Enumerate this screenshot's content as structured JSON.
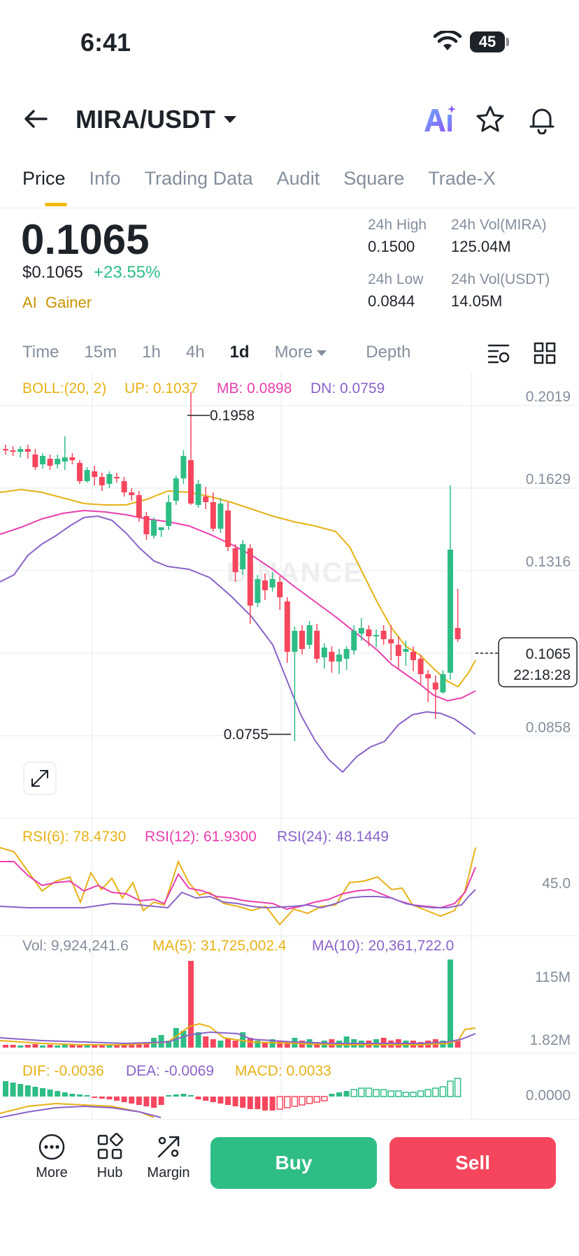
{
  "status_bar": {
    "time": "6:41",
    "battery": "45"
  },
  "header": {
    "pair": "MIRA/USDT"
  },
  "tabs": [
    "Price",
    "Info",
    "Trading Data",
    "Audit",
    "Square",
    "Trade-X"
  ],
  "price": {
    "last": "0.1065",
    "usd": "$0.1065",
    "change": "+23.55%",
    "tag_ai": "AI",
    "tag_gainer": "Gainer"
  },
  "stats": {
    "high_label": "24h High",
    "high_value": "0.1500",
    "low_label": "24h Low",
    "low_value": "0.0844",
    "vol_base_label": "24h Vol(MIRA)",
    "vol_base_value": "125.04M",
    "vol_quote_label": "24h Vol(USDT)",
    "vol_quote_value": "14.05M"
  },
  "intervals": {
    "time": "Time",
    "m15": "15m",
    "h1": "1h",
    "h4": "4h",
    "d1": "1d",
    "more": "More",
    "depth": "Depth"
  },
  "chart": {
    "boll": "BOLL:(20, 2)",
    "up": "UP: 0.1037",
    "mb": "MB: 0.0898",
    "dn": "DN: 0.0759",
    "price_ticks": [
      "0.2019",
      "0.1629",
      "0.1316",
      "0.0858"
    ],
    "high_marker": "0.1958",
    "low_marker": "0.0755",
    "watermark": "BINANCE",
    "last_price_tag": "0.1065",
    "countdown": "22:18:28",
    "rsi6": "RSI(6): 78.4730",
    "rsi12": "RSI(12): 61.9300",
    "rsi24": "RSI(24): 48.1449",
    "rsi_tick": "45.0",
    "vol": "Vol: 9,924,241.6",
    "ma5": "MA(5): 31,725,002.4",
    "ma10": "MA(10): 20,361,722.0",
    "vol_tick_hi": "115M",
    "vol_tick_lo": "1.82M",
    "dif": "DIF: -0.0036",
    "dea": "DEA: -0.0069",
    "macd": "MACD: 0.0033",
    "macd_tick": "0.0000",
    "colors": {
      "up": "#2ebd85",
      "down": "#f6465d",
      "boll_up": "#e7b116",
      "boll_mb": "#e83fae",
      "boll_dn": "#8a63c9"
    }
  },
  "bottom": {
    "more": "More",
    "hub": "Hub",
    "margin": "Margin",
    "buy": "Buy",
    "sell": "Sell"
  }
}
